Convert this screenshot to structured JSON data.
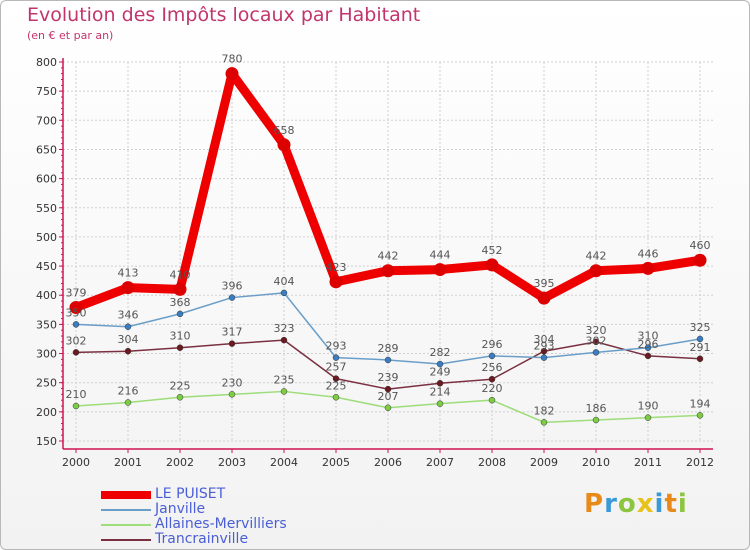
{
  "title": "Evolution des Impôts locaux par Habitant",
  "subtitle": "(en € et par an)",
  "logo": "Proxiti",
  "logo_letters": [
    {
      "ch": "P",
      "color": "#e88a1a"
    },
    {
      "ch": "r",
      "color": "#3a9ad9"
    },
    {
      "ch": "o",
      "color": "#8cc63f"
    },
    {
      "ch": "x",
      "color": "#e8c21a"
    },
    {
      "ch": "i",
      "color": "#3a9ad9"
    },
    {
      "ch": "t",
      "color": "#e88a1a"
    },
    {
      "ch": "i",
      "color": "#8cc63f"
    }
  ],
  "colors": {
    "title": "#c2356c",
    "axis": "#d01550",
    "grid": "#d0d0d0",
    "legend_text": "#4a5ed6",
    "label": "#555555"
  },
  "chart_data": {
    "type": "line",
    "title": "Evolution des Impôts locaux par Habitant",
    "subtitle": "(en € et par an)",
    "xlabel": "",
    "ylabel": "",
    "ylim": [
      150,
      800
    ],
    "yticks": [
      150,
      200,
      250,
      300,
      350,
      400,
      450,
      500,
      550,
      600,
      650,
      700,
      750,
      800
    ],
    "categories": [
      "2000",
      "2001",
      "2002",
      "2003",
      "2004",
      "2005",
      "2006",
      "2007",
      "2008",
      "2009",
      "2010",
      "2011",
      "2012"
    ],
    "grid": true,
    "legend_position": "bottom-left",
    "series": [
      {
        "name": "LE PUISET",
        "color": "#ee0000",
        "marker": "#dd0000",
        "thick": true,
        "values": [
          379,
          413,
          410,
          780,
          658,
          423,
          442,
          444,
          452,
          395,
          442,
          446,
          460
        ]
      },
      {
        "name": "Janville",
        "color": "#6a9ec8",
        "marker": "#3a7dc0",
        "thick": false,
        "values": [
          350,
          346,
          368,
          396,
          404,
          293,
          289,
          282,
          296,
          293,
          302,
          310,
          325
        ]
      },
      {
        "name": "Allaines-Mervilliers",
        "color": "#9fdc7a",
        "marker": "#7ccc44",
        "thick": false,
        "values": [
          210,
          216,
          225,
          230,
          235,
          225,
          207,
          214,
          220,
          182,
          186,
          190,
          194
        ]
      },
      {
        "name": "Trancrainville",
        "color": "#7a3040",
        "marker": "#6a1a20",
        "thick": false,
        "values": [
          302,
          304,
          310,
          317,
          323,
          257,
          239,
          249,
          256,
          304,
          320,
          296,
          291
        ]
      }
    ]
  }
}
